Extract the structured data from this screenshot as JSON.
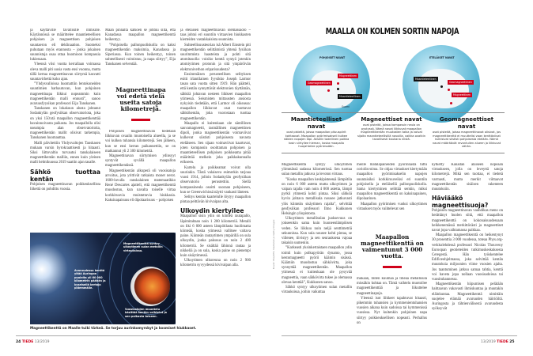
{
  "left_page": {
    "col1": [
      "ja käyttäville tavallisille ihmisille. Käytännössä se määrittelee maantieteellisen pohjoisen ja magneettisen pohjoisen suuntaeron eli deklinaation. Suomeksi puhutaan myös erannosta – jonka jokainen suunnistaja osaa ottaa huomioon kompassia lukiessaan.",
      "Yleensä viisi vuotta kerrallaan voimassa oleva malli piti uusia vasta ensi vuonna, mutta tällä kertaa magneettinavan siirtymä kasvatti suuntavirhettä koko ajan.",
      "”Yhdysvalloissa huomattiin lentokoneiden suuntimien harhautuvan, kun pohjoinen magneettinapa liikkui nopeammin kuin magneettikentän malli ennusti”, sanoo avaruusfyysikan professori Eija Tanskanen.",
      "Tanskanen on lokakuun alusta johtanut Sodankylän geofysiikan observatoriota, joka on yksi 150:stä maapallon magneettikenttää havainnoivasta paikasta. Jos maapallolla olisi useampia alan observatorioita, magneettikentän mallit olisivat tarkempia, Tanskanen huomauttaa.",
      "Malli päivitettiin Yhdysvaltojen Tanskasen mukaan varsin byrokraattisesti ja hitaasti. Siksi liittovaltio turvautui tanskalaiseen magneettikentän malliin, ennen kuin yleinen malli helmikuussa 2019 saatiin ajan tasalle."
    ],
    "col1_heading": "Sähkö tuottaa kentän",
    "col1_after": "Pohjoisen magneettinavan poikkeuksellista liikettä on pohdittu vuosia.",
    "col2_top": [
      "Maan pinnalta katsoen se johtuu siitä, että Kanadassa maapallon magneettikenttä heikentyy.",
      "”Pohjoisella pallonpuoliskolla on kaksi magneettikentän maksimia, Kanadassa ja Siperiassa. Kun toinen heikentyy, toinen suhteellisesti voimistuu, ja napa siirtyy”, Eija Tanskanen selventää."
    ],
    "pullquote": "Magneettinapa voi edetä vielä useita satoja kilometrejä.",
    "col2_bottom": [
      "Pohjoisen magneettinavan tiedetään liikkuvan ovaalin muotoisella alueella, ja se voi kulkea tuhansia kilometrejä. Sen jälkeen, kun se ensi kerran paikannettiin, se on matkannut yli 2 300 kilometriä.",
      "Magneettinavan siirtymisen ydinsyyt syntyvät syvällä maapallon magneettikentässä.",
      "Magneettikentän alkuperä oli vuosisatoja arvoitus, jota yrittivät ratkaista monet nerot. 1600-luvulla ranskalainen matemaatikko René Descartes ajatteli, että magneettikenttä muodostuu, kun navalta toiselle virtaa korkkiruuvia muistuttavia hiukkasia. Kaksinapaisuus eli dipolaarisuus – pohjoisen"
    ],
    "col3": [
      "ja eteläisen magneettinavan olemassaolo – taas johtui eri suuntiin virtaavien hiukkasten kierteiden vastakkaisista suunnista.",
      "Suhteellisuusteorian isä Albert Einstein piti magneettikentän selittämistä yhtenä fysiikan suurimmista haasteista ja pohti sitä atomitasolla: voisiko kenttä syntyä jotenkin atomiytimen protonin ja sitä ympäröivän elektroniverhon eriparisuudesta?",
      "Ensimmäisen perusteellisen selityksen esitti irlantilainen fyysikko Joseph Larmor tasan sata vuotta sitten 1919. Hän päätteli, että kentän synnyttävät elektronien täyttämän, sähköä johtavan nesteen liikkeet maapallon ytimessä. Seismisten mittausten ansiosta nykyisin tiedetään, että Larmor oli oikeassa: maapallon liikkuvat osat tuottavat sähkökentän, joka vuorostaan tuottaa magneettikentän.",
      "Maapallo ei kuitenkaan ole säntillinen sauvamagneetti, tasmällinen magneettinen dipoli, jonka magneettikentän voimaviivat kulkevat siististi pohjoisesta navasta eteläiseen. Sen sijaan voimaviivat kaartuvat, joten kompassin osoittaman pohjoisen ja maantieteellisen pohjoisen poikkeama pitää määrittää melkein joka paikkakunnalla erikseen.",
      "Kartelu ja poikkeamat voivat olla suuriakin. Tästä valaiseva esimerkin tarjoaa vuosi 1914, jolloin Sodankylän geofysiikan observatorio perustettiin. Siellä kompassineula osoitti suoraan pohjoiseen, kun se Greenwichissä näytti vankasti länteen.",
      "Selitys kentän kaartelulle löytyy maapallon pintaa peittävän kivivaipan alta."
    ],
    "col3_heading": "Ulkoydin kiertyilee",
    "col3_after": [
      "Maapallon sisin ydin on kiinteä rautapallo, läpimitaltaan noin 1 200 kilometriä. Metalli on liki 6 000 asteen lämpötilasta huolimatta kiinteää, koska ytimessä vallitsee valtava paine. Kiinteän rautaytimen ympärillä on sula ulkoydin, jonka paksuus on noin 2 400 kilometriä. Se sisältää lähinnä rautaa ja nikkeliä ja on sula, koska paine on pienempi kuin sisäytimessä.",
      "Ulkoytimen ulkoreuna on noin 2 900 kilometrin syvyydessä kivivaipan alla."
    ],
    "photo_labels": {
      "magnetosphere": "Magneettikenttä syntyy ulkoytimen sulan metallin virtauksissa.",
      "solar_wind": "Avaruudessa kenttä yltää Auringon puolelta yli 60 000 kilometrin päähän ja kyseisellä kertoja pidemmälle.",
      "reversal": "Vuosisatojen muuntelu käsittää kentän vaihtelut ja sen paikasta toiseen."
    },
    "caption": "Magneettikenttä on Maalle tuiki tärkeä. Se torjuu aurinkomyrskyt ja kosmiset hiukkaset.",
    "footer": {
      "page": "24",
      "brand": "TIEDE",
      "issue": "13/2019"
    }
  },
  "right_page": {
    "infographic": {
      "title": "MAALLA ON KOLMEN SORTIN NAPOJA",
      "north_globe": {
        "label": "POHJOISET NAVAT",
        "tags": [
          "Magneettinen",
          "Geomagneettinen",
          "Maantieteellinen"
        ],
        "place": "Suomi"
      },
      "south_globe": {
        "label": "ETELÄISET NAVAT",
        "tags": [
          "Maantieteellinen",
          "Geomagneettinen",
          "Magneettinen"
        ]
      },
      "types": [
        {
          "title": "Maantieteelliset navat",
          "text": "ovat pisteitä, joissa maapallon pituuspiirit kohtaavat. Maapallon pyörimisakseli kulkee näiden napojen läpi. Akselin todellinen paikka tosin siirtyilee hieman, koska maapallo huojahtelee pyöriessään."
        },
        {
          "title": "Magneettiset navat",
          "text": "ovat pisteitä, joissa kompassin neula on pystyssä. Nämä navat liikkuvat maapallon magneettikentän muutosten takia ja voivat sijaita maantieteellisillä navoilla, vaikka ovatkin tavallisesti kaukana niistä."
        },
        {
          "title": "Geomagneettiset navat",
          "text": "ovat pisteitä, joissa magneettinavat olisivat, jos magneettikenttä ei muuttelisi vaan kenttäviivat kulkisivat siististi pohjoisesta etelään. Nämä navat määräävät revontulien alueen ja liikkuvat vähän."
        }
      ],
      "colors": {
        "red": "#d0021b",
        "ocean": "#4fb0d0"
      }
    },
    "col1": [
      "Magneettikenttä syntyy ulkoytimen ylimmässä sadassa kilometrissä. Sen tuottaa sulan metallin jatkuva ja levoton virtaus.",
      "”Koska maapallon keskipisteessä lämpötila on noin 6 000 astetta mutta ulkoytimen ja vaipan rajalla vain noin 4 000 astetta, lämpö pyrkii ytimestä kohti pintaa. Siksi sähköä hyvin johtava metallisula nousee jatkuvasti ylös kiinteän sisäytimen rajalta”, selvittää geofysiikan professori Ilmo Kukkonen Helsingin yliopistosta.",
      "Ulkoytimen metallisulan juoksevuus on jokseenkin sama kuin huoneenlämpöisen veden. Se liikkuu noin neljä senttimetriä sekunnissa. Kun sula nousee kohti pintaa, se viilenee, tiivistyy ja sen seurauksena vajoaa takaisin uumeniin.",
      "”Karkeasti yksinkertaistaen maapallon ydin toimii kuin polkupyörän dynamo, jossa kestomagneetti pyörii käämin sisässä. Käämiin muodostuu sähkövirta, joka synnyttää magneettikentän. Maapallon ytimessä ei kuitenkaan ole pysyvää magneettia, vaan sähkövirta tukee jo olemassa olevaa kenttää”, Kukkonen sanoo.",
      "Sähkö syntyy ulkoytimen sulan metallin virtauksissa, joihin vaikuttaa"
    ],
    "col2_top": [
      "meille matalapaineiden pyörinnästä tuttu coriolisvoima. Se ohjaa virtaukset kiertymään maapallon pyörimisakselin napojen suuntaisiksi korkkiruuveiksi eri suuntiin pohjoisella ja eteläisellä pallonpuoliskolla. Sama kiertyminen selittää senkin, miksi maapallon magneettikenttä on kaksinapainen, dipolaarinen.",
      "Maapallon pyörimisen vuoksi ulkoytimen virtaukset myös vaihtelevat sen"
    ],
    "pullquote": "Maapallon magneettikenttä on vaimentunut 3 000 vuotta.",
    "col2_bottom": [
      "mukaan, miten kuumaa ja tiheää metallisula missäkin kohtaa on. Tämä vaihtelu muotoilee magneettikenttää ja liikuttelee magneettinapoja.",
      "Yleensä isot liikkeet tapahtuvat hitaasti, pikemmin tuhansien ja kymmenientuhansien vuosien aikana kuin sadoissa tai kymmenissä vuosissa. Nyt kuitenkin pohjoinen napa siirtyy poikkeuksellisen nopeasti. Perhallus on"
    ],
    "col3": [
      "kytketty Kanadan alaiseen nopeaan virtaukseen, jolla on leveyttä satoja kilometrejä. Mikä sen tuottaa, ei tiedetä varmasti, mutta merkit viittaavat magneettikentän sisäisen rakenteen muutoksiin."
    ],
    "col3_heading": "Häviääkö magneettisuoja?",
    "col3_after": [
      "Pohjoisen magneettinavan vauhdikas meno on herättänyt huolen siitä, että maapallon magneettikenttä on kokonaisuudessaan heikkenemässä merkittävästi ja magneettiset navat jopa vaihtamassa paikkaa.",
      "Maapallon magneettikenttä on heikentynyt 30 prosenttia 3 000 vuodessa, toteaa Phys.org-verkkolehdessä professori Nicolas Thouveny Euroopan geotieteiden tutkimuskeskuksesta Ceregestä. Hän työskentelee Edificeohjelmassa, joka selvittää kentän muutoksia miljoonien viime vuosien ajalta. Jos taantuminen jatkuu samaa tahtia, kenttä voi haveta jopa nollaan vuosisadoissa tai vuosituhannessa.",
      "Magneettikentän hiipumisen pelätään haittaavan vakavasti ihmiskuntaa ja muutakin eläinkuntaa. Magneettikenttä nimittäin suojelee elämää avaruuden häiriöiltä. Auringosta ja tähtienvälisestä avaruudesta syöksyvät"
    ],
    "photo_credit": "Kuvat: Esa/ATG medialab ja Getty Images",
    "footer": {
      "issue": "13/2019",
      "brand": "TIEDE",
      "page": "25"
    }
  }
}
